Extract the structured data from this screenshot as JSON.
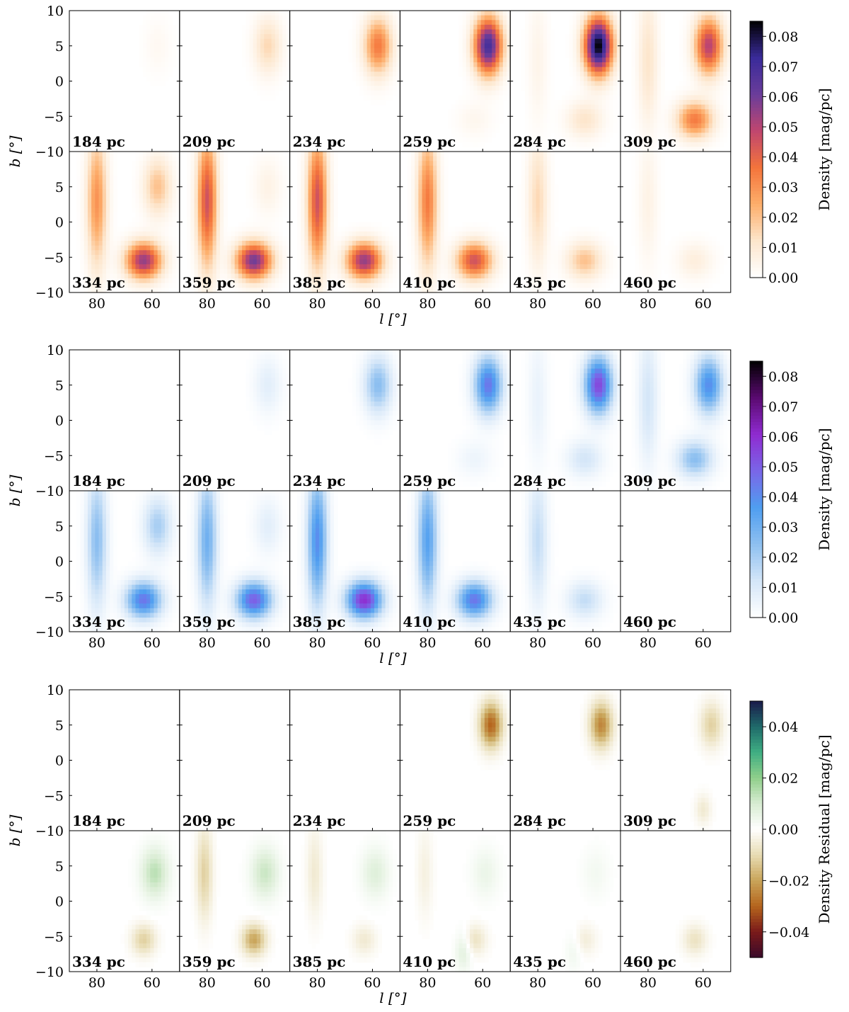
{
  "chart_data": [
    {
      "type": "heatmap",
      "name": "model",
      "colormap": "orange-purple-black",
      "colors": [
        "#ffffff",
        "#fde6cc",
        "#fdae6b",
        "#f4743b",
        "#c0466f",
        "#6a3d9a",
        "#3a2b9a",
        "#000000"
      ],
      "ylabel": "b [°]",
      "xlabel": "l [°]",
      "colorbar_label": "Density [mag/pc]",
      "colorbar_range": [
        0.0,
        0.085
      ],
      "colorbar_ticks": [
        "0.00",
        "0.01",
        "0.02",
        "0.03",
        "0.04",
        "0.05",
        "0.06",
        "0.07",
        "0.08"
      ],
      "xticks": [
        "80",
        "60"
      ],
      "yticks_top": [
        "10",
        "5",
        "0",
        "−5",
        "−10"
      ],
      "yticks_bottom": [
        "5",
        "0",
        "−5",
        "−10"
      ],
      "xlim": [
        90,
        50
      ],
      "ylim": [
        -10,
        10
      ],
      "distances": [
        "184 pc",
        "209 pc",
        "234 pc",
        "259 pc",
        "284 pc",
        "309 pc",
        "334 pc",
        "359 pc",
        "385 pc",
        "410 pc",
        "435 pc",
        "460 pc"
      ],
      "blobs": [
        {
          "panels": [
            0,
            1,
            2,
            3,
            4,
            5,
            6,
            7
          ],
          "l": 58,
          "b": 5,
          "sl": 3.5,
          "sb": 2.8,
          "amps": [
            0.003,
            0.015,
            0.035,
            0.07,
            0.085,
            0.05,
            0.02,
            0.006
          ]
        },
        {
          "panels": [
            3,
            4,
            5,
            6,
            7,
            8,
            9,
            10,
            11
          ],
          "l": 63,
          "b": -5.5,
          "sl": 4.5,
          "sb": 1.8,
          "amps": [
            0.004,
            0.012,
            0.035,
            0.055,
            0.06,
            0.055,
            0.045,
            0.02,
            0.008
          ]
        },
        {
          "panels": [
            4,
            5,
            6,
            7,
            8,
            9,
            10,
            11
          ],
          "l": 80,
          "b": 3,
          "sl": 2.5,
          "sb": 6.5,
          "amps": [
            0.005,
            0.012,
            0.03,
            0.045,
            0.045,
            0.035,
            0.015,
            0.006
          ]
        }
      ]
    },
    {
      "type": "heatmap",
      "name": "reconstruction",
      "colormap": "blue-purple-black",
      "colors": [
        "#ffffff",
        "#d4e6f8",
        "#8ec0f0",
        "#4f9ef0",
        "#7a66e8",
        "#8f2bd0",
        "#5a0a70",
        "#000000"
      ],
      "ylabel": "b [°]",
      "xlabel": "l [°]",
      "colorbar_label": "Density [mag/pc]",
      "colorbar_range": [
        0.0,
        0.085
      ],
      "colorbar_ticks": [
        "0.00",
        "0.01",
        "0.02",
        "0.03",
        "0.04",
        "0.05",
        "0.06",
        "0.07",
        "0.08"
      ],
      "xticks": [
        "80",
        "60"
      ],
      "yticks_top": [
        "10",
        "5",
        "0",
        "−5",
        "−10"
      ],
      "yticks_bottom": [
        "5",
        "0",
        "−5",
        "−10"
      ],
      "xlim": [
        90,
        50
      ],
      "ylim": [
        -10,
        10
      ],
      "distances": [
        "184 pc",
        "209 pc",
        "234 pc",
        "259 pc",
        "284 pc",
        "309 pc",
        "334 pc",
        "359 pc",
        "385 pc",
        "410 pc",
        "435 pc",
        "460 pc"
      ],
      "blobs": [
        {
          "panels": [
            1,
            2,
            3,
            4,
            5,
            6,
            7
          ],
          "l": 58,
          "b": 5,
          "sl": 3.5,
          "sb": 2.8,
          "amps": [
            0.008,
            0.025,
            0.045,
            0.055,
            0.04,
            0.02,
            0.008
          ]
        },
        {
          "panels": [
            3,
            4,
            5,
            6,
            7,
            8,
            9,
            10
          ],
          "l": 63,
          "b": -5.5,
          "sl": 4.5,
          "sb": 1.8,
          "amps": [
            0.005,
            0.012,
            0.025,
            0.045,
            0.05,
            0.06,
            0.045,
            0.015
          ]
        },
        {
          "panels": [
            4,
            5,
            6,
            7,
            8,
            9,
            10
          ],
          "l": 80,
          "b": 3,
          "sl": 2.5,
          "sb": 6.5,
          "amps": [
            0.006,
            0.012,
            0.025,
            0.03,
            0.04,
            0.035,
            0.015
          ]
        }
      ]
    },
    {
      "type": "heatmap",
      "name": "residual",
      "colormap": "diverging-brown-white-green",
      "colors_neg": [
        "#ffffff",
        "#e8dcb4",
        "#c9a55a",
        "#b5651d",
        "#7a1a1a",
        "#3a0a2a"
      ],
      "colors_pos": [
        "#ffffff",
        "#d8ecd2",
        "#8fcf8a",
        "#3fae82",
        "#1f6a6a",
        "#1a1a4a"
      ],
      "ylabel": "b [°]",
      "xlabel": "l [°]",
      "colorbar_label": "Density Residual [mag/pc]",
      "colorbar_range": [
        -0.05,
        0.05
      ],
      "colorbar_ticks": [
        "−0.04",
        "−0.02",
        "0.00",
        "0.02",
        "0.04"
      ],
      "xticks": [
        "80",
        "60"
      ],
      "yticks_top": [
        "10",
        "5",
        "0",
        "−5",
        "−10"
      ],
      "yticks_bottom": [
        "5",
        "0",
        "−5",
        "−10"
      ],
      "xlim": [
        90,
        50
      ],
      "ylim": [
        -10,
        10
      ],
      "distances": [
        "184 pc",
        "209 pc",
        "234 pc",
        "259 pc",
        "284 pc",
        "309 pc",
        "334 pc",
        "359 pc",
        "385 pc",
        "410 pc",
        "435 pc",
        "460 pc"
      ],
      "blobs": [
        {
          "panels": [
            3,
            4,
            5
          ],
          "l": 57,
          "b": 5,
          "sl": 2.8,
          "sb": 2.2,
          "amps": [
            -0.03,
            -0.025,
            -0.012
          ]
        },
        {
          "panels": [
            5
          ],
          "l": 60,
          "b": -7,
          "sl": 2.0,
          "sb": 1.5,
          "amps": [
            -0.006
          ]
        },
        {
          "panels": [
            6,
            7,
            8,
            9,
            10
          ],
          "l": 59,
          "b": 4,
          "sl": 3.5,
          "sb": 2.5,
          "amps": [
            0.014,
            0.012,
            0.008,
            0.005,
            0.003
          ]
        },
        {
          "panels": [
            6,
            7,
            8,
            9,
            10,
            11
          ],
          "l": 63,
          "b": -5.5,
          "sl": 3.0,
          "sb": 1.5,
          "amps": [
            -0.012,
            -0.02,
            -0.006,
            -0.008,
            -0.005,
            -0.008
          ]
        },
        {
          "panels": [
            7,
            8,
            9
          ],
          "l": 81,
          "b": 4,
          "sl": 2.0,
          "sb": 4.5,
          "amps": [
            -0.012,
            -0.006,
            -0.004
          ]
        },
        {
          "panels": [
            9,
            10
          ],
          "l": 67,
          "b": -7,
          "sl": 2.0,
          "sb": 2.0,
          "amps": [
            0.008,
            0.004
          ]
        }
      ]
    }
  ]
}
